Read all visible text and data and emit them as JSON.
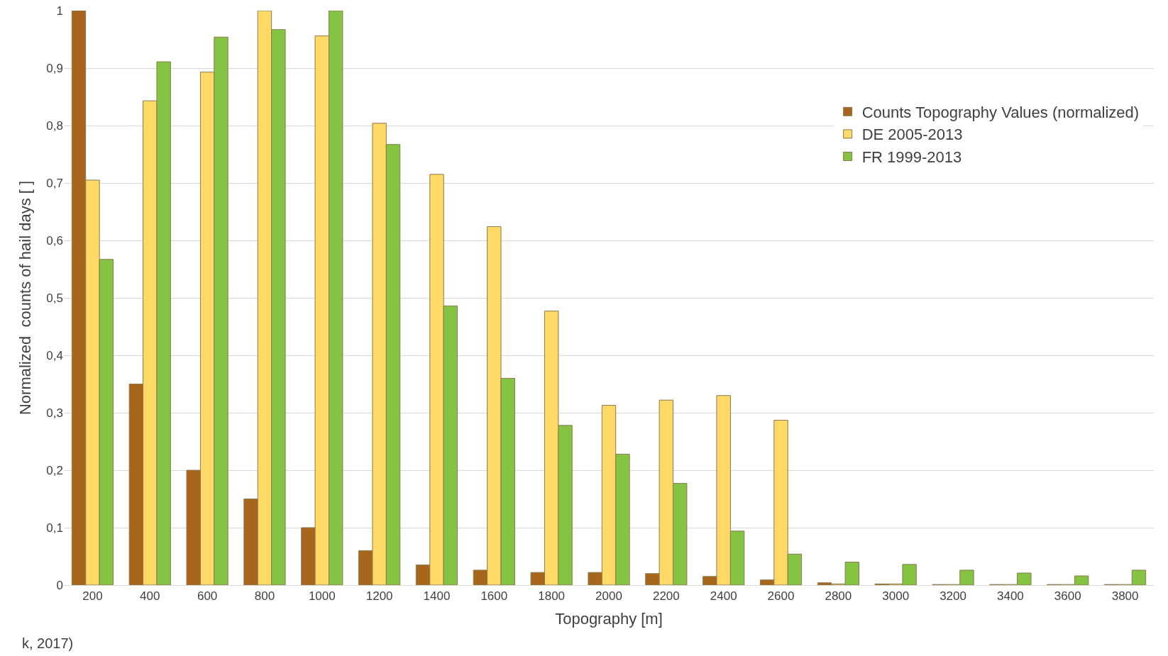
{
  "chart_data": {
    "type": "bar",
    "xlabel": "Topography [m]",
    "ylabel": "Normalized  counts of hail days [ ]",
    "categories": [
      "200",
      "400",
      "600",
      "800",
      "1000",
      "1200",
      "1400",
      "1600",
      "1800",
      "2000",
      "2200",
      "2400",
      "2600",
      "2800",
      "3000",
      "3200",
      "3400",
      "3600",
      "3800"
    ],
    "series": [
      {
        "name": "Counts Topography Values (normalized)",
        "color": "#a8661c",
        "values": [
          1.0,
          0.35,
          0.2,
          0.15,
          0.1,
          0.06,
          0.035,
          0.026,
          0.022,
          0.022,
          0.02,
          0.015,
          0.009,
          0.004,
          0.002,
          0.001,
          0.001,
          0.001,
          0.001
        ]
      },
      {
        "name": "DE 2005-2013",
        "color": "#ffd966",
        "values": [
          0.705,
          0.843,
          0.893,
          1.0,
          0.956,
          0.804,
          0.715,
          0.624,
          0.477,
          0.313,
          0.322,
          0.33,
          0.287,
          0.002,
          0.002,
          0.001,
          0.001,
          0.001,
          0.001
        ]
      },
      {
        "name": "FR 1999-2013",
        "color": "#84c442",
        "values": [
          0.567,
          0.911,
          0.954,
          0.967,
          1.0,
          0.767,
          0.486,
          0.36,
          0.278,
          0.228,
          0.177,
          0.094,
          0.054,
          0.04,
          0.036,
          0.026,
          0.021,
          0.016,
          0.026
        ]
      }
    ],
    "ylim": [
      0,
      1
    ],
    "yticks": [
      0,
      {
        "value": 0.1,
        "label": "0,1"
      },
      {
        "value": 0.2,
        "label": "0,2"
      },
      {
        "value": 0.3,
        "label": "0,3"
      },
      {
        "value": 0.4,
        "label": "0,4"
      },
      {
        "value": 0.5,
        "label": "0,5"
      },
      {
        "value": 0.6,
        "label": "0,6"
      },
      {
        "value": 0.7,
        "label": "0,7"
      },
      {
        "value": 0.8,
        "label": "0,8"
      },
      {
        "value": 0.9,
        "label": "0,9"
      },
      1
    ],
    "grid": "y",
    "legend": "top right",
    "annotations": [
      "k, 2017)"
    ]
  }
}
